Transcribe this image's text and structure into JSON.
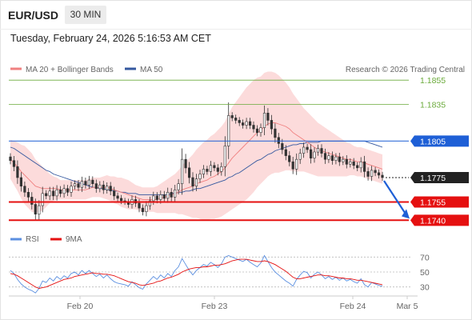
{
  "header": {
    "symbol": "EUR/USD",
    "timeframe": "30 MIN",
    "datetime": "Tuesday, February 24, 2026 5:16:53 AM CET",
    "credit": "Research © 2026 Trading Central"
  },
  "legend": {
    "ma20": "MA 20 + Bollinger Bands",
    "ma50": "MA 50",
    "rsi": "RSI",
    "ma9": "9MA"
  },
  "colors": {
    "ma20": "#f08080",
    "bollinger_fill": "#fbd5d5",
    "ma50": "#34589f",
    "target_green": "#6aaa3a",
    "pivot_blue": "#1e5fd6",
    "support_red": "#e51010",
    "current_dark": "#222222",
    "rsi_line": "#5b8fe0",
    "rsi_ma": "#e51010"
  },
  "chart_data": [
    {
      "type": "candlestick",
      "title": "EUR/USD 30 MIN",
      "y_range": [
        1.1733,
        1.1863
      ],
      "x_labels": [
        "Feb 20",
        "Feb 23",
        "Feb 24",
        "Mar 5"
      ],
      "levels": [
        {
          "label": "1.1855",
          "value": 1.1855,
          "kind": "target"
        },
        {
          "label": "1.1835",
          "value": 1.1835,
          "kind": "target"
        },
        {
          "label": "1.1805",
          "value": 1.1805,
          "kind": "pivot"
        },
        {
          "label": "1.1775",
          "value": 1.1775,
          "kind": "current"
        },
        {
          "label": "1.1755",
          "value": 1.1755,
          "kind": "support"
        },
        {
          "label": "1.1740",
          "value": 1.174,
          "kind": "support"
        }
      ],
      "close": [
        1.1789,
        1.1784,
        1.1775,
        1.1768,
        1.1763,
        1.1759,
        1.1753,
        1.1745,
        1.1752,
        1.1762,
        1.176,
        1.1764,
        1.176,
        1.1765,
        1.1762,
        1.1766,
        1.1763,
        1.1768,
        1.177,
        1.1767,
        1.1772,
        1.1769,
        1.1773,
        1.177,
        1.1766,
        1.1769,
        1.1765,
        1.1768,
        1.1764,
        1.176,
        1.1758,
        1.1756,
        1.1755,
        1.1753,
        1.1757,
        1.1754,
        1.175,
        1.1747,
        1.1752,
        1.1756,
        1.176,
        1.1757,
        1.1761,
        1.1758,
        1.1763,
        1.1759,
        1.1765,
        1.177,
        1.179,
        1.1783,
        1.1775,
        1.1768,
        1.1774,
        1.1778,
        1.1782,
        1.178,
        1.1785,
        1.1783,
        1.178,
        1.1784,
        1.1801,
        1.1826,
        1.1824,
        1.1822,
        1.182,
        1.1818,
        1.1821,
        1.1818,
        1.1815,
        1.1812,
        1.1816,
        1.1828,
        1.1822,
        1.1815,
        1.1808,
        1.1803,
        1.1798,
        1.1793,
        1.1788,
        1.1782,
        1.179,
        1.1795,
        1.18,
        1.1798,
        1.1791,
        1.1796,
        1.1799,
        1.1795,
        1.179,
        1.1793,
        1.1789,
        1.1792,
        1.1788,
        1.179,
        1.1786,
        1.1788,
        1.1785,
        1.1783,
        1.1788,
        1.178,
        1.1776,
        1.1781,
        1.1779,
        1.1777,
        1.1775
      ],
      "ma20": [
        1.179,
        1.1787,
        1.1784,
        1.178,
        1.1777,
        1.1774,
        1.1771,
        1.1768,
        1.1767,
        1.1766,
        1.1766,
        1.1766,
        1.1766,
        1.1766,
        1.1765,
        1.1765,
        1.1765,
        1.1765,
        1.1765,
        1.1765,
        1.1765,
        1.1765,
        1.1766,
        1.1767,
        1.1767,
        1.1767,
        1.1767,
        1.1767,
        1.1766,
        1.1765,
        1.1764,
        1.1763,
        1.1762,
        1.1761,
        1.176,
        1.1759,
        1.1758,
        1.1757,
        1.1757,
        1.1757,
        1.1757,
        1.1757,
        1.1758,
        1.1759,
        1.176,
        1.1761,
        1.1762,
        1.1763,
        1.1765,
        1.1766,
        1.1767,
        1.1768,
        1.177,
        1.1771,
        1.1772,
        1.1773,
        1.1775,
        1.1776,
        1.1778,
        1.178,
        1.1783,
        1.1787,
        1.1791,
        1.1794,
        1.1797,
        1.18,
        1.1803,
        1.1806,
        1.1809,
        1.1812,
        1.1814,
        1.1817,
        1.1819,
        1.182,
        1.182,
        1.1819,
        1.1818,
        1.1817,
        1.1815,
        1.1812,
        1.181,
        1.1808,
        1.1806,
        1.1804,
        1.1802,
        1.18,
        1.1798,
        1.1797,
        1.1796,
        1.1795,
        1.1794,
        1.1793,
        1.1792,
        1.1791,
        1.179,
        1.179,
        1.1789,
        1.1788,
        1.1788,
        1.1787,
        1.1786,
        1.1785,
        1.1784,
        1.1783,
        1.1782
      ],
      "ma50": [
        1.18,
        1.1799,
        1.1797,
        1.1795,
        1.1793,
        1.1791,
        1.1789,
        1.1787,
        1.1785,
        1.1783,
        1.1781,
        1.178,
        1.1778,
        1.1777,
        1.1776,
        1.1775,
        1.1774,
        1.1773,
        1.1772,
        1.1771,
        1.177,
        1.1769,
        1.1768,
        1.1767,
        1.1767,
        1.1766,
        1.1766,
        1.1765,
        1.1765,
        1.1764,
        1.1764,
        1.1763,
        1.1763,
        1.1762,
        1.1762,
        1.1762,
        1.1761,
        1.1761,
        1.1761,
        1.1761,
        1.1761,
        1.1761,
        1.1761,
        1.1761,
        1.1761,
        1.1762,
        1.1762,
        1.1763,
        1.1763,
        1.1764,
        1.1764,
        1.1765,
        1.1766,
        1.1766,
        1.1767,
        1.1768,
        1.1769,
        1.177,
        1.1771,
        1.1772,
        1.1773,
        1.1775,
        1.1776,
        1.1778,
        1.1779,
        1.1781,
        1.1783,
        1.1785,
        1.1787,
        1.1789,
        1.179,
        1.1792,
        1.1794,
        1.1795,
        1.1797,
        1.1798,
        1.1799,
        1.18,
        1.1801,
        1.1802,
        1.1802,
        1.1803,
        1.1803,
        1.1804,
        1.1804,
        1.1804,
        1.1804,
        1.1805,
        1.1805,
        1.1805,
        1.1805,
        1.1805,
        1.1805,
        1.1805,
        1.1805,
        1.1805,
        1.1805,
        1.1805,
        1.1805,
        1.1805,
        1.1804,
        1.1803,
        1.1802,
        1.1801,
        1.18
      ],
      "bb_band": [
        0.0016,
        0.0018,
        0.002,
        0.0022,
        0.0024,
        0.0024,
        0.0024,
        0.0022,
        0.002,
        0.0018,
        0.0015,
        0.0012,
        0.001,
        0.0009,
        0.0008,
        0.0008,
        0.0008,
        0.0008,
        0.0008,
        0.0008,
        0.0008,
        0.0008,
        0.0008,
        0.0008,
        0.0008,
        0.0008,
        0.0009,
        0.001,
        0.001,
        0.0011,
        0.0011,
        0.0012,
        0.0012,
        0.0012,
        0.0011,
        0.001,
        0.001,
        0.001,
        0.001,
        0.001,
        0.001,
        0.0011,
        0.0012,
        0.0013,
        0.0014,
        0.0015,
        0.0016,
        0.0018,
        0.002,
        0.0022,
        0.0024,
        0.0026,
        0.0028,
        0.003,
        0.0032,
        0.0033,
        0.0034,
        0.0035,
        0.0036,
        0.0037,
        0.0038,
        0.004,
        0.0042,
        0.0043,
        0.0044,
        0.0045,
        0.0046,
        0.0046,
        0.0046,
        0.0045,
        0.0044,
        0.0044,
        0.0043,
        0.0042,
        0.0041,
        0.004,
        0.0038,
        0.0036,
        0.0034,
        0.0032,
        0.003,
        0.0028,
        0.0026,
        0.0025,
        0.0024,
        0.0023,
        0.0022,
        0.0021,
        0.002,
        0.0019,
        0.0018,
        0.0017,
        0.0016,
        0.0015,
        0.0014,
        0.0013,
        0.0012,
        0.0012,
        0.0012,
        0.0012,
        0.0012,
        0.0012,
        0.0012,
        0.0012,
        0.0012
      ]
    },
    {
      "type": "line",
      "title": "RSI",
      "y_range": [
        20,
        80
      ],
      "y_ticks": [
        70,
        50,
        30
      ],
      "series": [
        {
          "name": "RSI",
          "values": [
            52,
            48,
            40,
            34,
            30,
            27,
            25,
            22,
            28,
            38,
            36,
            42,
            38,
            44,
            40,
            45,
            42,
            48,
            50,
            46,
            52,
            48,
            52,
            48,
            44,
            47,
            42,
            46,
            41,
            37,
            35,
            34,
            33,
            31,
            37,
            33,
            29,
            27,
            34,
            39,
            44,
            40,
            46,
            42,
            48,
            44,
            52,
            57,
            68,
            60,
            52,
            46,
            52,
            56,
            60,
            58,
            63,
            60,
            56,
            61,
            70,
            72,
            70,
            68,
            66,
            64,
            67,
            63,
            60,
            57,
            62,
            72,
            64,
            56,
            50,
            46,
            42,
            38,
            35,
            31,
            40,
            46,
            51,
            49,
            42,
            47,
            50,
            46,
            41,
            44,
            40,
            43,
            39,
            42,
            38,
            40,
            37,
            35,
            41,
            33,
            30,
            36,
            34,
            32,
            31
          ]
        },
        {
          "name": "9MA",
          "values": [
            48,
            47,
            45,
            42,
            39,
            36,
            33,
            30,
            28,
            29,
            30,
            32,
            34,
            36,
            38,
            40,
            41,
            42,
            44,
            45,
            46,
            47,
            48,
            49,
            48,
            48,
            47,
            47,
            46,
            45,
            43,
            41,
            39,
            37,
            36,
            35,
            33,
            32,
            33,
            34,
            35,
            37,
            38,
            40,
            42,
            43,
            45,
            47,
            50,
            52,
            54,
            55,
            56,
            56,
            57,
            57,
            58,
            59,
            59,
            60,
            61,
            63,
            65,
            66,
            67,
            67,
            67,
            66,
            65,
            64,
            64,
            65,
            64,
            62,
            60,
            57,
            54,
            51,
            47,
            43,
            41,
            41,
            42,
            43,
            44,
            45,
            46,
            46,
            45,
            45,
            44,
            43,
            42,
            42,
            41,
            41,
            40,
            39,
            39,
            38,
            37,
            36,
            35,
            34,
            33
          ]
        }
      ]
    }
  ]
}
